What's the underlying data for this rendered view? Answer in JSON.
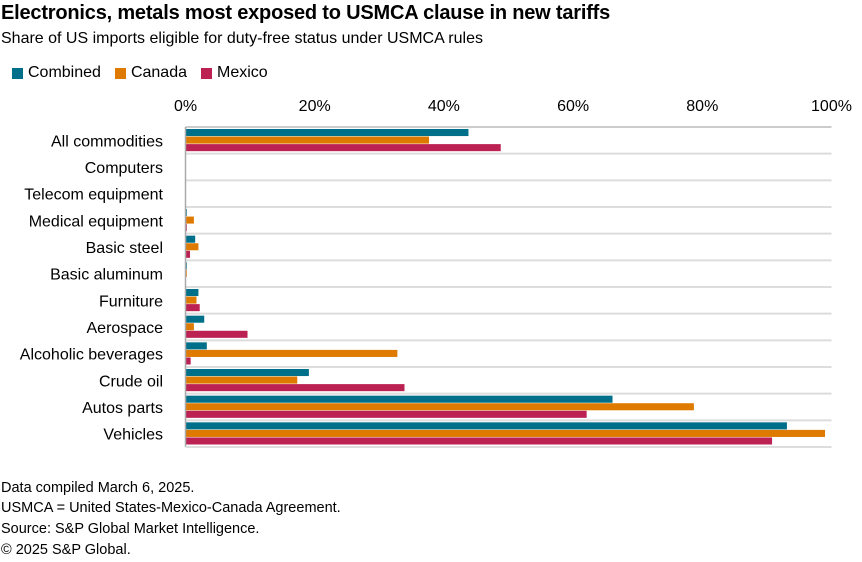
{
  "title": "Electronics, metals most exposed to USMCA clause in new tariffs",
  "subtitle": "Share of US imports eligible for duty-free status under USMCA rules",
  "colors": {
    "Combined": "#006f8a",
    "Canada": "#df7a00",
    "Mexico": "#bc2154"
  },
  "footer": [
    "Data compiled March 6, 2025.",
    "USMCA = United States-Mexico-Canada Agreement.",
    "Source: S&P Global Market Intelligence.",
    "© 2025 S&P Global."
  ],
  "chart_data": {
    "type": "bar",
    "orientation": "horizontal",
    "title": "Electronics, metals most exposed to USMCA clause in new tariffs",
    "subtitle": "Share of US imports eligible for duty-free status under USMCA rules",
    "categories": [
      "All commodities",
      "Computers",
      "Telecom equipment",
      "Medical equipment",
      "Basic steel",
      "Basic aluminum",
      "Furniture",
      "Aerospace",
      "Alcoholic beverages",
      "Crude oil",
      "Autos parts",
      "Vehicles"
    ],
    "series": [
      {
        "name": "Combined",
        "values": [
          43.8,
          0,
          0,
          0.2,
          1.5,
          0.2,
          2.0,
          2.9,
          3.3,
          19.1,
          66.1,
          93.1
        ]
      },
      {
        "name": "Canada",
        "values": [
          37.7,
          0,
          0,
          1.3,
          2.0,
          0.2,
          1.7,
          1.3,
          32.8,
          17.3,
          78.7,
          99.0
        ]
      },
      {
        "name": "Mexico",
        "values": [
          48.8,
          0,
          0,
          0.2,
          0.7,
          0,
          2.2,
          9.6,
          0.8,
          33.9,
          62.1,
          90.8
        ]
      }
    ],
    "xlim": [
      0,
      100
    ],
    "xticks": [
      "0%",
      "20%",
      "40%",
      "60%",
      "80%",
      "100%"
    ],
    "xaxis_position": "top",
    "legend": "top-left",
    "grid": "horizontal separators"
  }
}
